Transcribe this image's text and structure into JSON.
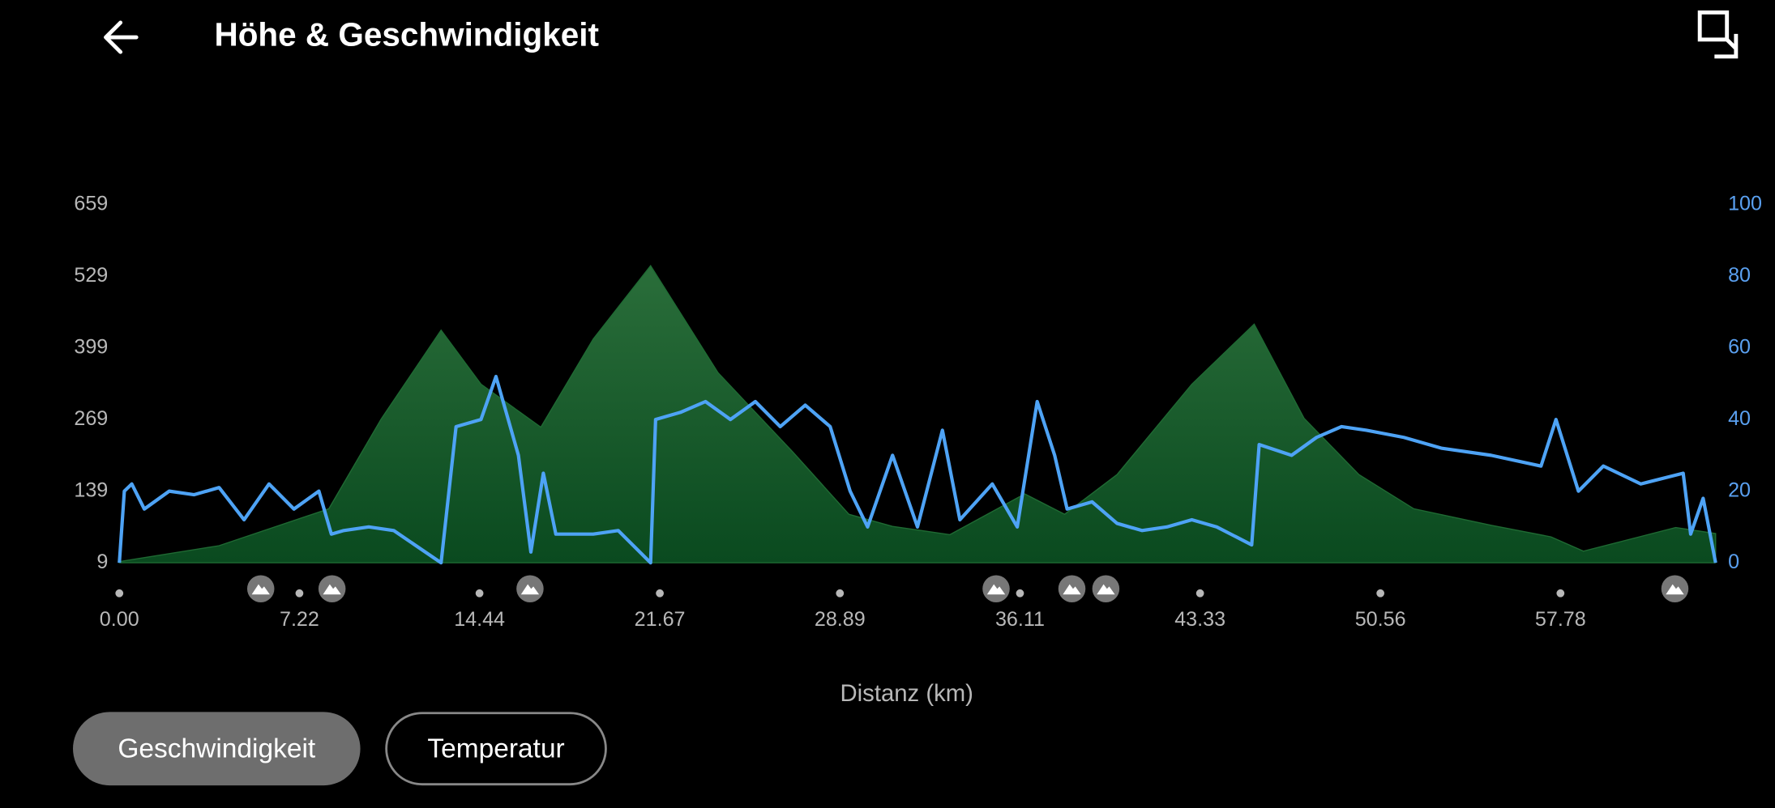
{
  "header": {
    "title": "Höhe & Geschwindigkeit"
  },
  "chart_data": {
    "type": "area",
    "x_label": "Distanz (km)",
    "xlim": [
      0,
      64
    ],
    "xticks": [
      {
        "value": 0,
        "label": "0.00"
      },
      7.22,
      14.44,
      21.67,
      28.89,
      36.11,
      43.33,
      50.56,
      57.78
    ],
    "ylim": [
      9,
      659
    ],
    "yticks": [
      9,
      139,
      269,
      399,
      529,
      659
    ],
    "y2lim": [
      0,
      100
    ],
    "y2ticks": [
      0,
      20,
      40,
      60,
      80,
      100
    ],
    "series": [
      {
        "color": "#1f6a33",
        "x": [
          0,
          4,
          8.4,
          10.5,
          12.9,
          14.5,
          16.9,
          19,
          21.3,
          24,
          27,
          29.25,
          31,
          33.3,
          36.3,
          37.9,
          40,
          43,
          45.5,
          47.5,
          49.7,
          51.9,
          55,
          57.4,
          58.7,
          62.4,
          64
        ],
        "values": [
          11,
          40,
          107,
          270,
          431,
          333,
          255,
          415,
          548,
          354,
          210,
          97,
          75,
          60,
          134,
          97,
          169,
          333,
          442,
          271,
          169,
          107,
          77,
          56,
          30,
          73,
          62
        ]
      },
      {
        "color": "#4ea3f5",
        "axis": "y2",
        "x": [
          0,
          0.2,
          0.5,
          1,
          2,
          3,
          4,
          5,
          6,
          7,
          8,
          8.5,
          9,
          10,
          11,
          12.9,
          13.5,
          14.5,
          15.1,
          16,
          16.5,
          17,
          17.5,
          19,
          20,
          21.3,
          21.5,
          22.5,
          23.5,
          24.5,
          25.5,
          26.5,
          27.5,
          28.5,
          29.3,
          30,
          31,
          32,
          33,
          33.7,
          35,
          36,
          36.8,
          37.5,
          38,
          39,
          40,
          41,
          42,
          43,
          44,
          45.4,
          45.7,
          47,
          48,
          49,
          50,
          51.5,
          53,
          55,
          57,
          57.6,
          58.5,
          59.5,
          61,
          62.7,
          63,
          63.5,
          64
        ],
        "values": [
          0,
          20,
          22,
          15,
          20,
          19,
          21,
          12,
          22,
          15,
          20,
          8,
          9,
          10,
          9,
          0,
          38,
          40,
          52,
          30,
          3,
          25,
          8,
          8,
          9,
          0,
          40,
          42,
          45,
          40,
          45,
          38,
          44,
          38,
          20,
          10,
          30,
          10,
          37,
          12,
          22,
          10,
          45,
          30,
          15,
          17,
          11,
          9,
          10,
          12,
          10,
          5,
          33,
          30,
          35,
          38,
          37,
          35,
          32,
          30,
          27,
          40,
          20,
          27,
          22,
          25,
          8,
          18,
          0
        ]
      }
    ]
  },
  "buttons": [
    "Geschwindigkeit",
    "Temperatur"
  ]
}
